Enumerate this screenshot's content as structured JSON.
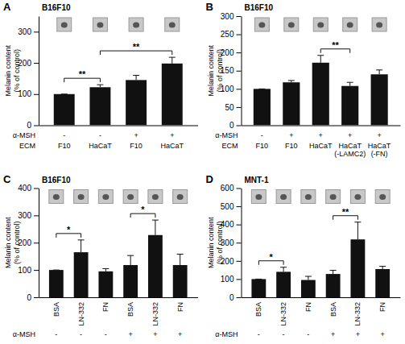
{
  "chart_data": [
    {
      "type": "bar",
      "panel": "A",
      "title": "B16F10",
      "y_label": "Melanin content (% of control)",
      "values": [
        100,
        122,
        145,
        198
      ],
      "errors": [
        0,
        8,
        15,
        20
      ],
      "color": "#111111",
      "ylim": [
        0,
        350
      ],
      "yticks": [
        0,
        100,
        200,
        300
      ],
      "label_rows": [
        {
          "label": "α-MSH",
          "texts": [
            "-",
            "-",
            "+",
            "+"
          ]
        },
        {
          "label": "ECM",
          "texts": [
            "F10",
            "HaCaT",
            "F10",
            "HaCaT"
          ]
        }
      ],
      "significance": [
        {
          "from": 0,
          "to": 1,
          "label": "**"
        },
        {
          "from": 1,
          "to": 3,
          "label": "**"
        }
      ]
    },
    {
      "type": "bar",
      "panel": "B",
      "title": "B16F10",
      "y_label": "Melanin content (% of control)",
      "values": [
        100,
        118,
        172,
        108,
        140
      ],
      "errors": [
        0,
        5,
        20,
        10,
        12
      ],
      "color": "#111111",
      "ylim": [
        0,
        300
      ],
      "yticks": [
        0,
        50,
        100,
        150,
        200,
        250,
        300
      ],
      "label_rows": [
        {
          "label": "α-MSH",
          "texts": [
            "-",
            "+",
            "+",
            "+",
            "+"
          ]
        },
        {
          "label": "ECM",
          "texts": [
            "F10",
            "F10",
            "HaCaT",
            "HaCaT (-LAMC2)",
            "HaCaT (-FN)"
          ]
        }
      ],
      "significance": [
        {
          "from": 2,
          "to": 3,
          "label": "**"
        }
      ]
    },
    {
      "type": "bar",
      "panel": "C",
      "title": "B16F10",
      "y_label": "Melanin content (% of control)",
      "values": [
        100,
        165,
        95,
        118,
        228,
        118
      ],
      "errors": [
        0,
        45,
        10,
        35,
        55,
        40
      ],
      "color": "#111111",
      "ylim": [
        0,
        400
      ],
      "yticks": [
        0,
        100,
        200,
        300,
        400
      ],
      "label_rows": [
        {
          "texts": [
            "BSA",
            "LN-332",
            "FN",
            "BSA",
            "LN-332",
            "FN"
          ]
        },
        {
          "label": "α-MSH",
          "texts": [
            "-",
            "-",
            "-",
            "+",
            "+",
            "+"
          ]
        }
      ],
      "significance": [
        {
          "from": 0,
          "to": 1,
          "label": "*"
        },
        {
          "from": 3,
          "to": 4,
          "label": "*"
        }
      ]
    },
    {
      "type": "bar",
      "panel": "D",
      "title": "MNT-1",
      "y_label": "Melanin content (% of control)",
      "values": [
        100,
        140,
        95,
        128,
        318,
        155
      ],
      "errors": [
        0,
        25,
        20,
        20,
        95,
        15
      ],
      "color": "#111111",
      "ylim": [
        0,
        600
      ],
      "yticks": [
        0,
        100,
        200,
        300,
        400,
        500,
        600
      ],
      "label_rows": [
        {
          "texts": [
            "BSA",
            "LN-332",
            "FN",
            "BSA",
            "LN-332",
            "FN"
          ]
        },
        {
          "label": "α-MSH",
          "texts": [
            "-",
            "-",
            "-",
            "+",
            "+",
            "+"
          ]
        }
      ],
      "significance": [
        {
          "from": 0,
          "to": 1,
          "label": "*"
        },
        {
          "from": 3,
          "to": 4,
          "label": "**"
        }
      ]
    }
  ]
}
